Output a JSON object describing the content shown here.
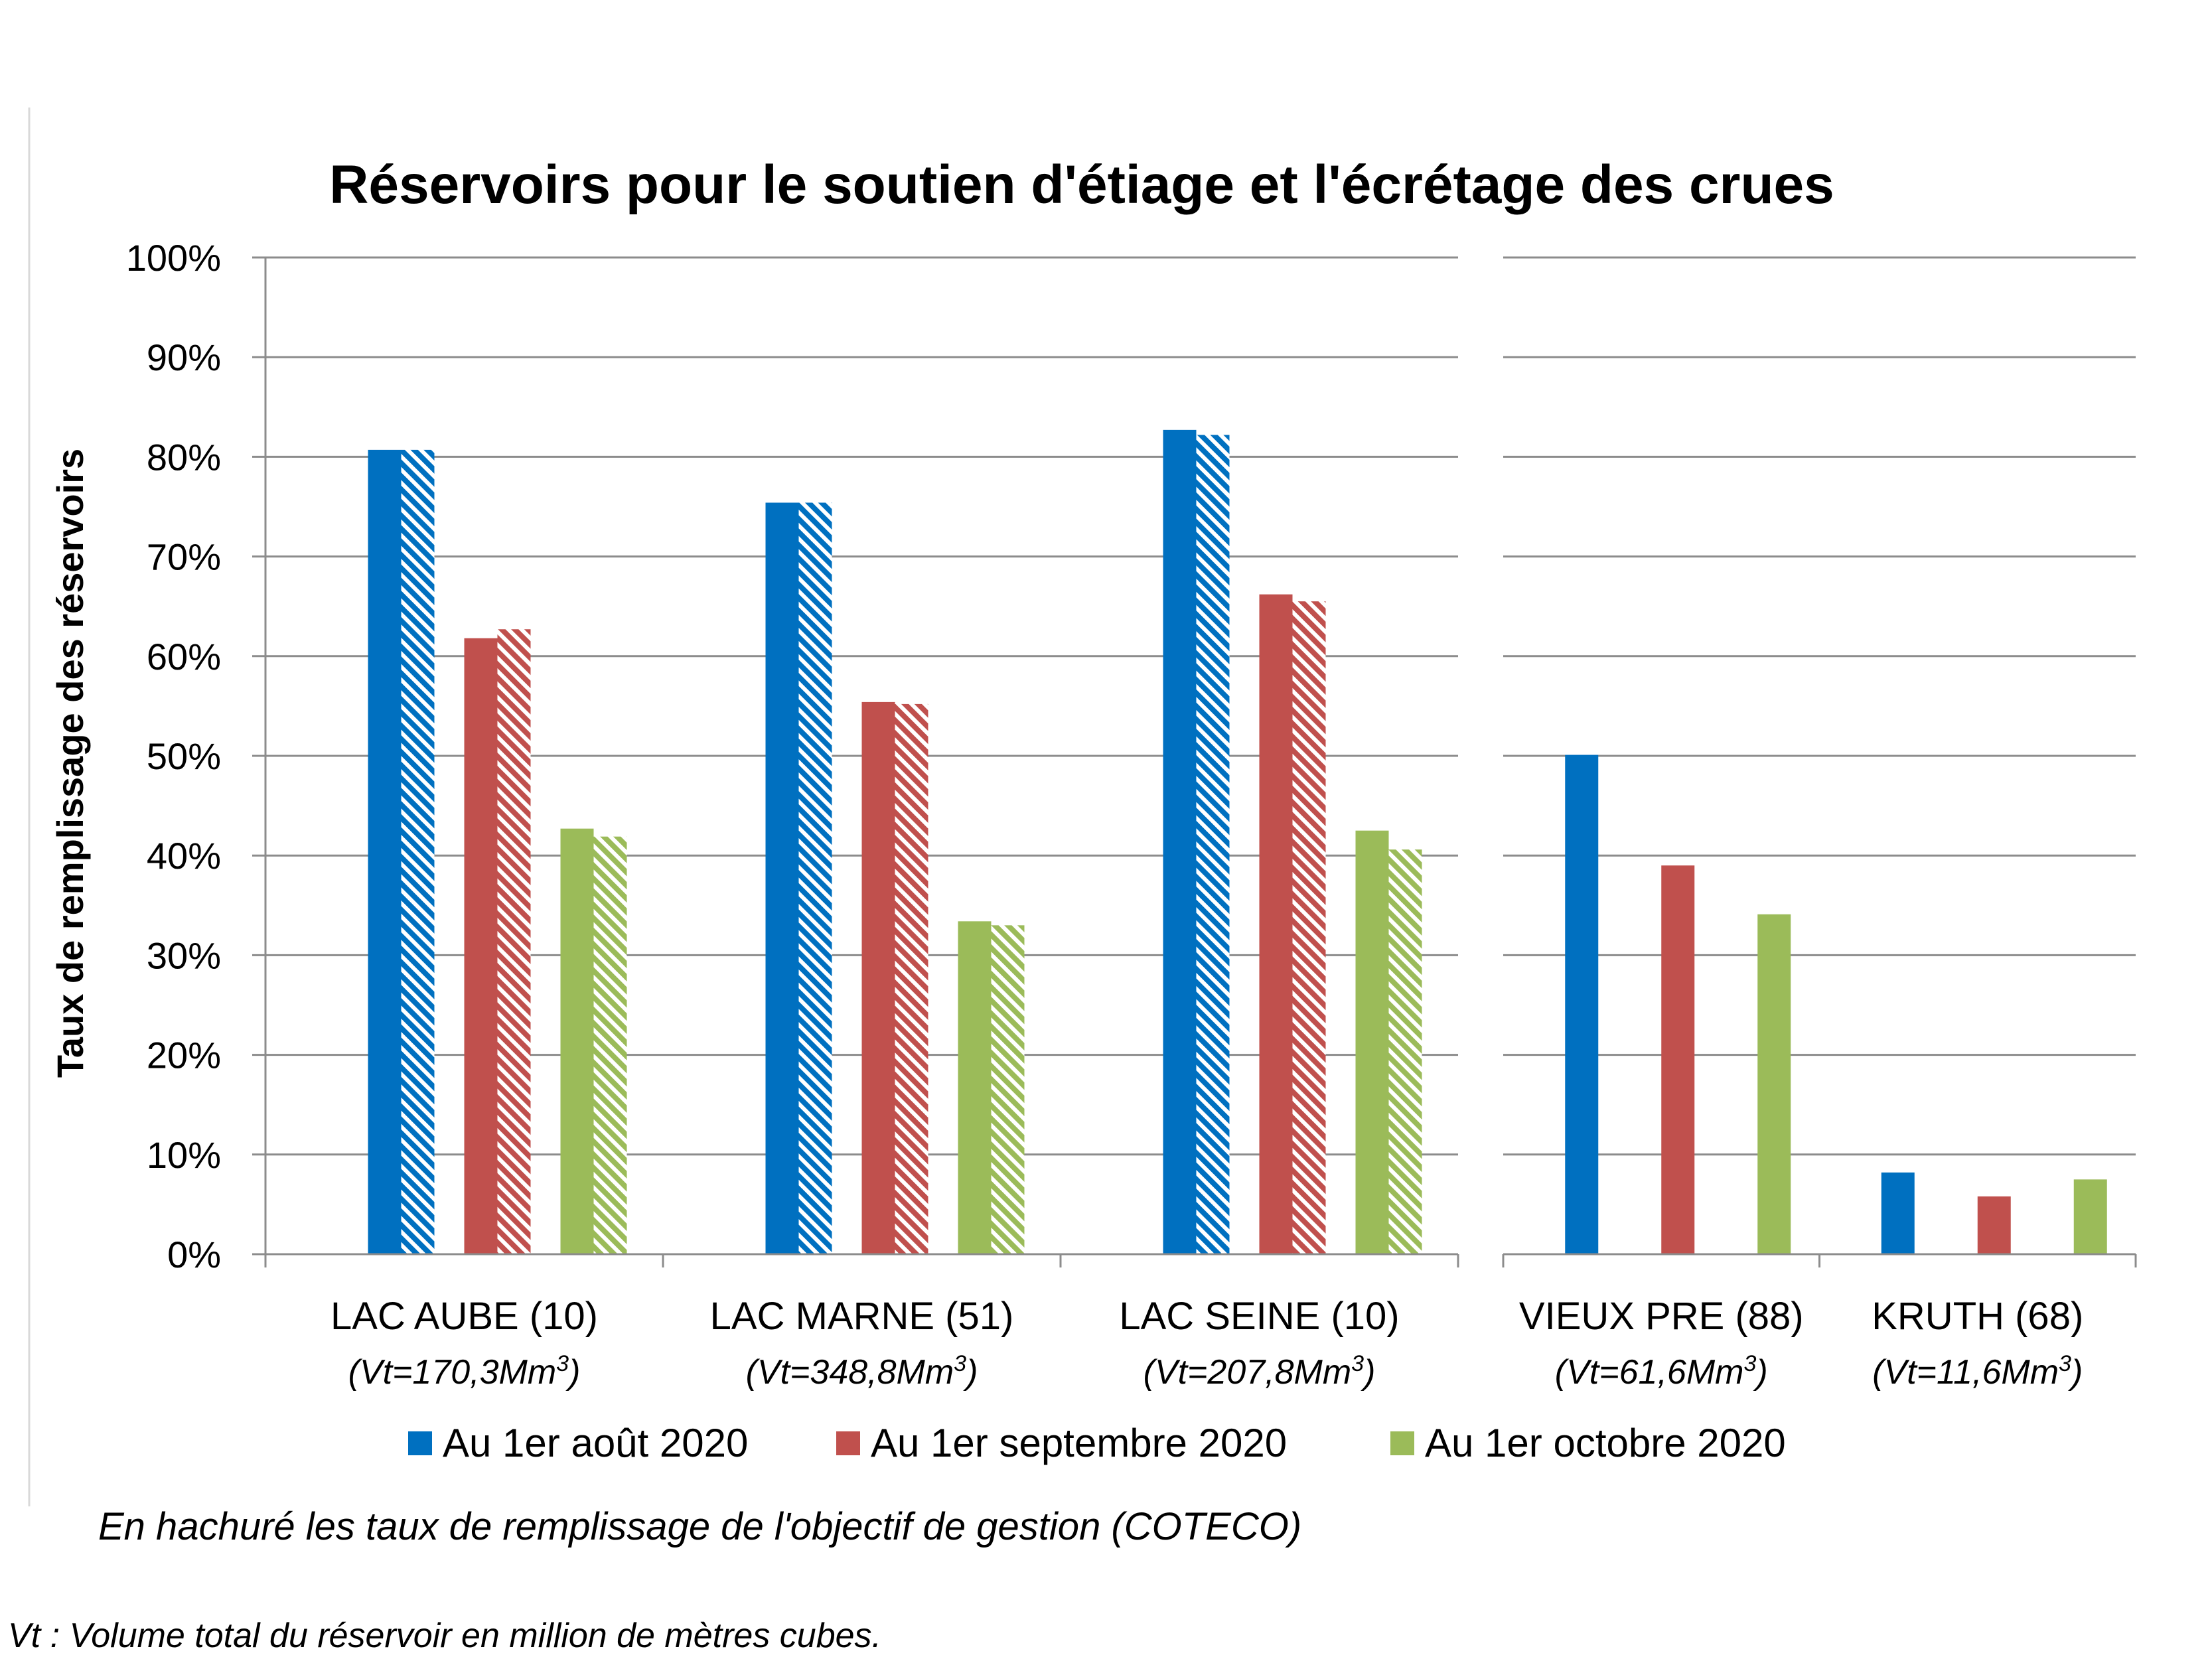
{
  "chart_data": {
    "type": "bar",
    "title": "Réservoirs pour le soutien d'étiage et l'écrétage des crues",
    "ylabel": "Taux de remplissage des réservoirs",
    "ylim": [
      0,
      100
    ],
    "yticks": [
      "0%",
      "10%",
      "20%",
      "30%",
      "40%",
      "50%",
      "60%",
      "70%",
      "80%",
      "90%",
      "100%"
    ],
    "grid": true,
    "legend_position": "bottom",
    "categories": [
      {
        "name": "LAC AUBE (10)",
        "volume_prefix": "(Vt=170,3Mm",
        "volume_suffix": ")",
        "sup": "3"
      },
      {
        "name": "LAC MARNE (51)",
        "volume_prefix": "(Vt=348,8Mm",
        "volume_suffix": ")",
        "sup": "3"
      },
      {
        "name": "LAC SEINE (10)",
        "volume_prefix": "(Vt=207,8Mm",
        "volume_suffix": ")",
        "sup": "3"
      },
      {
        "name": "VIEUX PRE (88)",
        "volume_prefix": "(Vt=61,6Mm",
        "volume_suffix": ")",
        "sup": "3"
      },
      {
        "name": "KRUTH (68)",
        "volume_prefix": "(Vt=11,6Mm",
        "volume_suffix": ")",
        "sup": "3"
      }
    ],
    "series": [
      {
        "name": "Au 1er août 2020",
        "color": "#0070C0",
        "values": [
          80.7,
          75.4,
          82.7,
          50.1,
          8.2
        ],
        "objective": [
          80.7,
          75.4,
          82.2,
          null,
          null
        ]
      },
      {
        "name": "Au 1er septembre 2020",
        "color": "#C0504D",
        "values": [
          61.8,
          55.4,
          66.2,
          39.0,
          5.8
        ],
        "objective": [
          62.7,
          55.2,
          65.5,
          null,
          null
        ]
      },
      {
        "name": "Au 1er octobre 2020",
        "color": "#9BBB59",
        "values": [
          42.7,
          33.4,
          42.5,
          34.1,
          7.5
        ],
        "objective": [
          41.9,
          33.0,
          40.6,
          null,
          null
        ]
      }
    ],
    "note": "En hachuré les taux de remplissage de l'objectif de gestion (COTECO)",
    "footnote": "Vt : Volume total du réservoir en million de mètres cubes."
  }
}
